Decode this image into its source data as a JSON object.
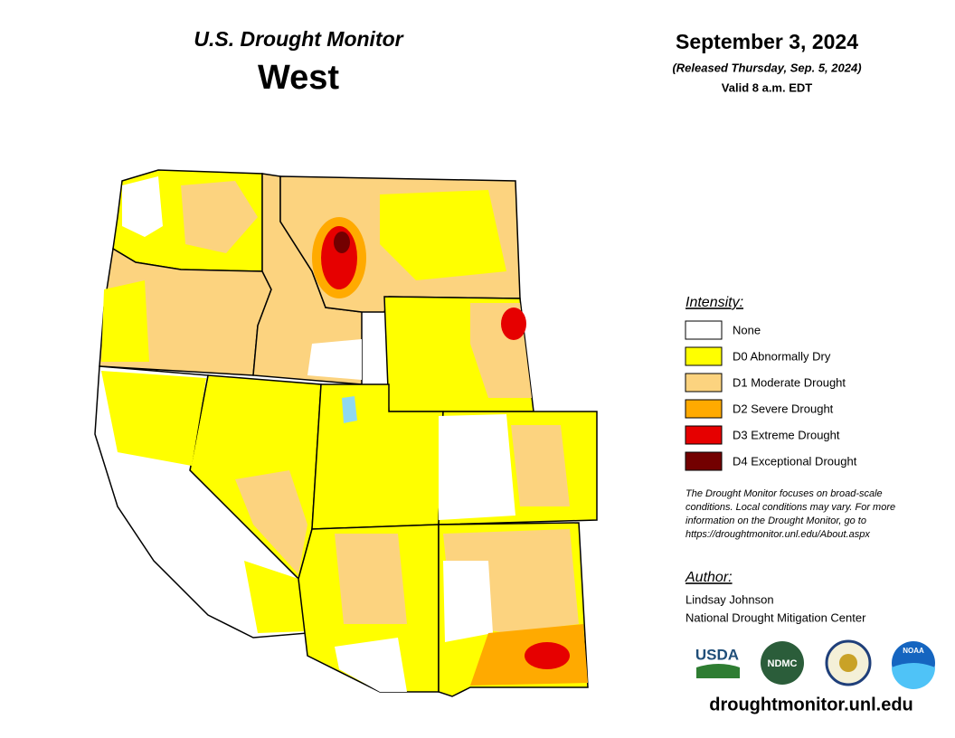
{
  "header": {
    "title": "U.S. Drought Monitor",
    "region": "West",
    "date": "September 3, 2024",
    "released": "(Released Thursday, Sep. 5, 2024)",
    "valid": "Valid 8 a.m. EDT"
  },
  "legend": {
    "title": "Intensity:",
    "items": [
      {
        "label": "None",
        "color": "#ffffff"
      },
      {
        "label": "D0 Abnormally Dry",
        "color": "#ffff00"
      },
      {
        "label": "D1 Moderate Drought",
        "color": "#fcd37f"
      },
      {
        "label": "D2 Severe Drought",
        "color": "#ffaa00"
      },
      {
        "label": "D3 Extreme Drought",
        "color": "#e60000"
      },
      {
        "label": "D4 Exceptional Drought",
        "color": "#730000"
      }
    ]
  },
  "note": [
    "The Drought Monitor focuses on broad-scale",
    "conditions. Local conditions may vary. For more",
    "information on the Drought Monitor, go to",
    "https://droughtmonitor.unl.edu/About.aspx"
  ],
  "author": {
    "title": "Author:",
    "name": "Lindsay Johnson",
    "org": "National Drought Mitigation Center"
  },
  "logos": [
    "USDA",
    "NDMC",
    "NOAA"
  ],
  "url": "droughtmonitor.unl.edu"
}
